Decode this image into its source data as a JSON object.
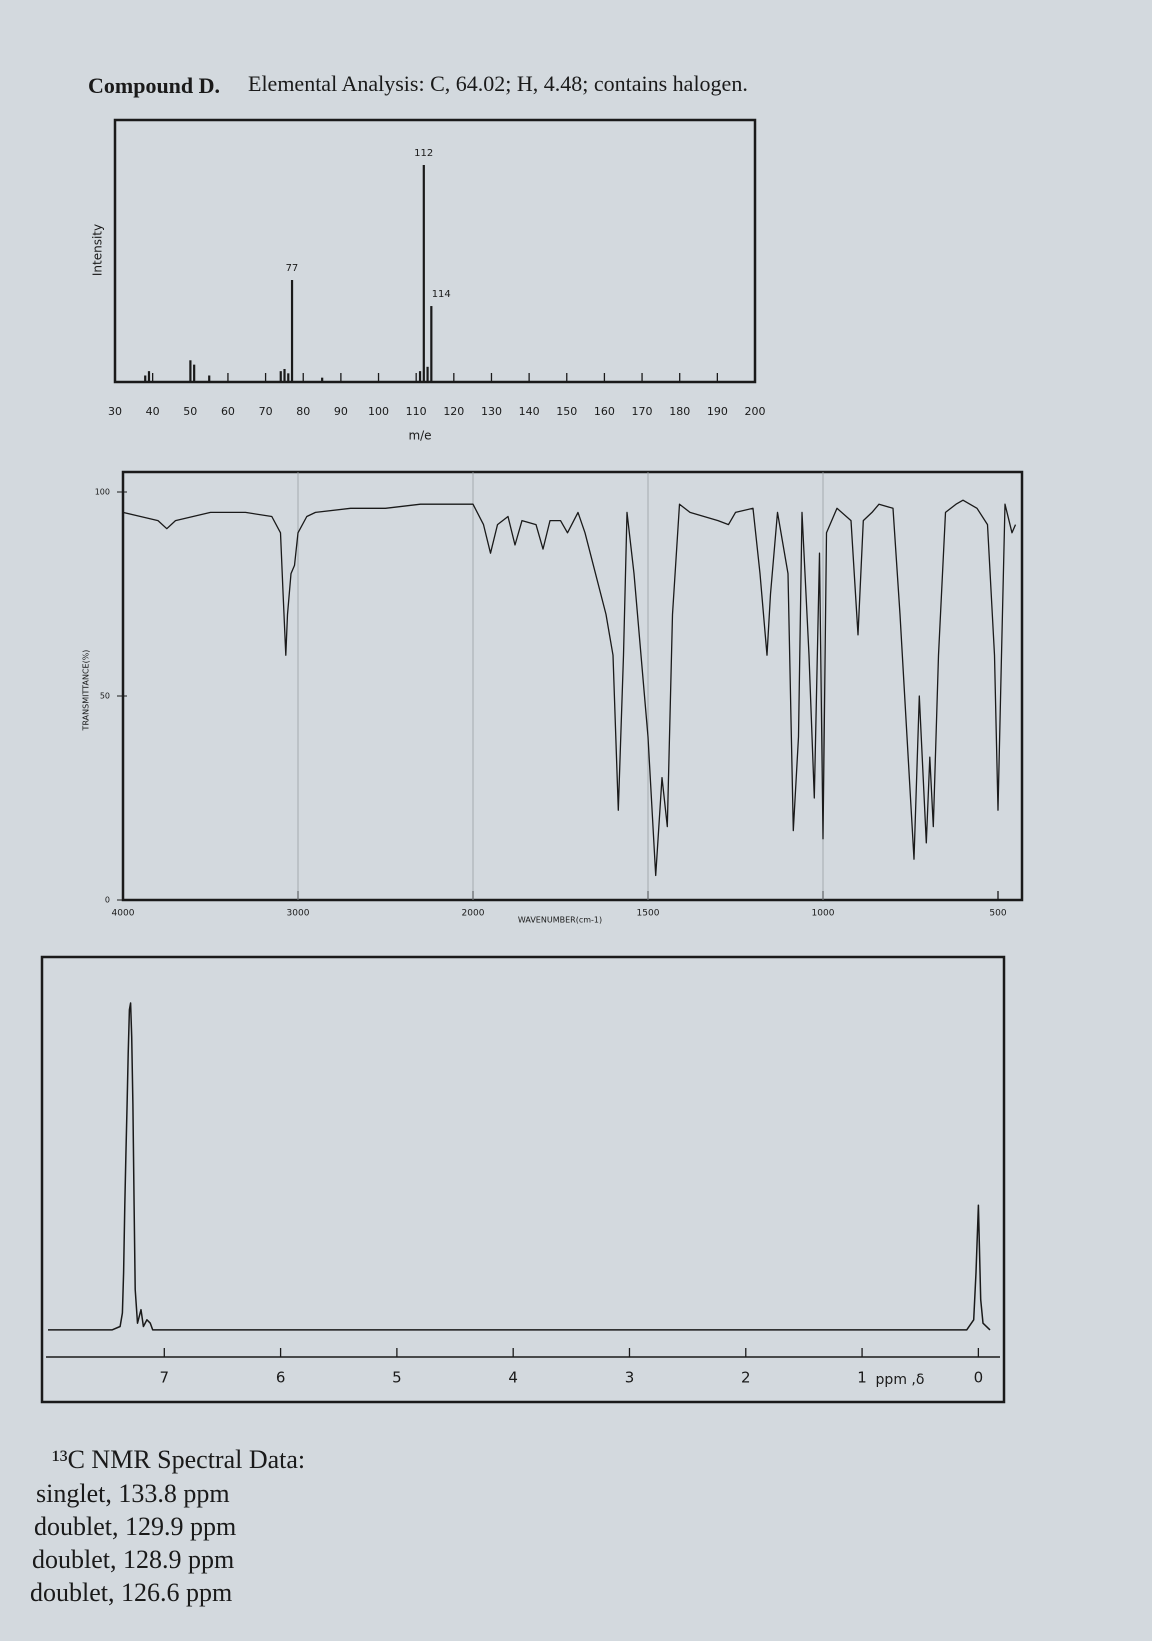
{
  "heading": {
    "compound": "Compound D.",
    "analysis": "Elemental Analysis:  C, 64.02; H, 4.48; contains halogen."
  },
  "chart_data": [
    {
      "type": "bar",
      "y_label": "Intensity",
      "x_label": "m/e",
      "color": "#1a1a1a",
      "x": [
        38,
        39,
        50,
        51,
        55,
        74,
        75,
        76,
        77,
        85,
        111,
        112,
        113,
        114
      ],
      "values": [
        3,
        5,
        10,
        8,
        3,
        5,
        6,
        4,
        47,
        2,
        5,
        100,
        7,
        35
      ],
      "peak_labels": [
        {
          "value": 77,
          "label": "77"
        },
        {
          "value": 112,
          "label": "112"
        },
        {
          "value": 114,
          "label": "114"
        }
      ],
      "xlim": [
        30,
        200
      ],
      "xticks": [
        30,
        40,
        50,
        60,
        70,
        80,
        90,
        100,
        110,
        120,
        130,
        140,
        150,
        160,
        170,
        180,
        190,
        200
      ],
      "ylim": [
        0,
        100
      ]
    },
    {
      "type": "line",
      "y_label": "TRANSMITTANCE(%)",
      "x_label": "WAVENUMBER(cm-1)",
      "color": "#1a1a1a",
      "grid": true,
      "x": [
        4000,
        3900,
        3800,
        3750,
        3700,
        3500,
        3300,
        3150,
        3100,
        3085,
        3070,
        3060,
        3040,
        3020,
        3000,
        2950,
        2900,
        2700,
        2500,
        2300,
        2100,
        2000,
        1970,
        1950,
        1930,
        1900,
        1880,
        1860,
        1820,
        1800,
        1780,
        1750,
        1730,
        1700,
        1680,
        1620,
        1600,
        1585,
        1570,
        1560,
        1540,
        1500,
        1478,
        1460,
        1445,
        1430,
        1410,
        1380,
        1300,
        1270,
        1250,
        1200,
        1180,
        1160,
        1150,
        1130,
        1100,
        1085,
        1070,
        1060,
        1040,
        1025,
        1010,
        1000,
        990,
        960,
        920,
        900,
        885,
        860,
        840,
        800,
        780,
        760,
        740,
        725,
        705,
        695,
        685,
        670,
        650,
        620,
        600,
        560,
        530,
        510,
        500,
        490,
        480,
        460,
        450
      ],
      "values": [
        95,
        94,
        93,
        91,
        93,
        95,
        95,
        94,
        90,
        75,
        60,
        70,
        80,
        82,
        90,
        94,
        95,
        96,
        96,
        97,
        97,
        97,
        92,
        85,
        92,
        94,
        87,
        93,
        92,
        86,
        93,
        93,
        90,
        95,
        90,
        70,
        60,
        22,
        60,
        95,
        80,
        40,
        6,
        30,
        18,
        70,
        97,
        95,
        93,
        92,
        95,
        96,
        80,
        60,
        75,
        95,
        80,
        17,
        40,
        95,
        60,
        25,
        85,
        15,
        90,
        96,
        93,
        65,
        93,
        95,
        97,
        96,
        70,
        40,
        10,
        50,
        14,
        35,
        18,
        60,
        95,
        97,
        98,
        96,
        92,
        60,
        22,
        60,
        97,
        90,
        92
      ],
      "xlim": [
        4000,
        450
      ],
      "xticks": [
        4000,
        3000,
        2000,
        1500,
        1000,
        500
      ],
      "ylim": [
        0,
        100
      ],
      "yticks": [
        0,
        50,
        100
      ]
    },
    {
      "type": "line",
      "x_label": "ppm ,δ",
      "color": "#1a1a1a",
      "x": [
        8.0,
        7.45,
        7.38,
        7.36,
        7.35,
        7.34,
        7.33,
        7.32,
        7.31,
        7.3,
        7.29,
        7.28,
        7.27,
        7.26,
        7.25,
        7.23,
        7.2,
        7.18,
        7.15,
        7.12,
        7.1,
        6.5,
        5.0,
        3.0,
        1.0,
        0.1,
        0.04,
        0.02,
        0.0,
        -0.02,
        -0.04,
        -0.1
      ],
      "values": [
        3,
        3,
        4,
        8,
        20,
        40,
        55,
        70,
        85,
        98,
        100,
        90,
        70,
        40,
        15,
        5,
        9,
        4,
        6,
        5,
        3,
        3,
        3,
        3,
        3,
        3,
        6,
        20,
        40,
        12,
        5,
        3
      ],
      "xlim": [
        8.0,
        -0.1
      ],
      "xticks": [
        7,
        6,
        5,
        4,
        3,
        2,
        1,
        0
      ],
      "ylim": [
        0,
        100
      ]
    }
  ],
  "carbon_nmr": {
    "title": "¹³C NMR Spectral Data:",
    "lines": [
      "singlet, 133.8 ppm",
      "doublet, 129.9 ppm",
      "doublet, 128.9 ppm",
      "doublet, 126.6 ppm"
    ]
  }
}
